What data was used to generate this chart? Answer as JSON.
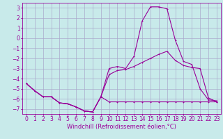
{
  "bg_color": "#c8eaea",
  "grid_color": "#aaaacc",
  "line_color": "#990099",
  "xlabel": "Windchill (Refroidissement éolien,°C)",
  "xlabel_fontsize": 6.0,
  "tick_fontsize": 5.5,
  "ylim": [
    -7.5,
    3.5
  ],
  "xlim": [
    -0.5,
    23.5
  ],
  "yticks": [
    -7,
    -6,
    -5,
    -4,
    -3,
    -2,
    -1,
    0,
    1,
    2,
    3
  ],
  "xticks": [
    0,
    1,
    2,
    3,
    4,
    5,
    6,
    7,
    8,
    9,
    10,
    11,
    12,
    13,
    14,
    15,
    16,
    17,
    18,
    19,
    20,
    21,
    22,
    23
  ],
  "line1_x": [
    0,
    1,
    2,
    3,
    4,
    5,
    6,
    7,
    8,
    9,
    10,
    11,
    12,
    13,
    14,
    15,
    16,
    17,
    18,
    19,
    20,
    21,
    22,
    23
  ],
  "line1_y": [
    -4.5,
    -5.2,
    -5.8,
    -5.8,
    -6.4,
    -6.5,
    -6.8,
    -7.2,
    -7.3,
    -5.8,
    -6.3,
    -6.3,
    -6.3,
    -6.3,
    -6.3,
    -6.3,
    -6.3,
    -6.3,
    -6.3,
    -6.3,
    -6.3,
    -6.3,
    -6.3,
    -6.3
  ],
  "line2_x": [
    0,
    1,
    2,
    3,
    4,
    5,
    6,
    7,
    8,
    9,
    10,
    11,
    12,
    13,
    14,
    15,
    16,
    17,
    18,
    19,
    20,
    21,
    22,
    23
  ],
  "line2_y": [
    -4.5,
    -5.2,
    -5.8,
    -5.8,
    -6.4,
    -6.5,
    -6.8,
    -7.2,
    -7.3,
    -5.8,
    -3.0,
    -2.8,
    -3.0,
    -1.8,
    1.7,
    3.1,
    3.1,
    2.9,
    -0.2,
    -2.3,
    -2.6,
    -5.0,
    -6.1,
    -6.2
  ],
  "line3_x": [
    0,
    1,
    2,
    3,
    4,
    5,
    6,
    7,
    8,
    9,
    10,
    11,
    12,
    13,
    14,
    15,
    16,
    17,
    18,
    19,
    20,
    21,
    22,
    23
  ],
  "line3_y": [
    -4.5,
    -5.2,
    -5.8,
    -5.8,
    -6.4,
    -6.5,
    -6.8,
    -7.2,
    -7.3,
    -5.8,
    -3.6,
    -3.2,
    -3.1,
    -2.8,
    -2.4,
    -2.0,
    -1.6,
    -1.3,
    -2.2,
    -2.7,
    -2.9,
    -3.0,
    -5.9,
    -6.3
  ]
}
